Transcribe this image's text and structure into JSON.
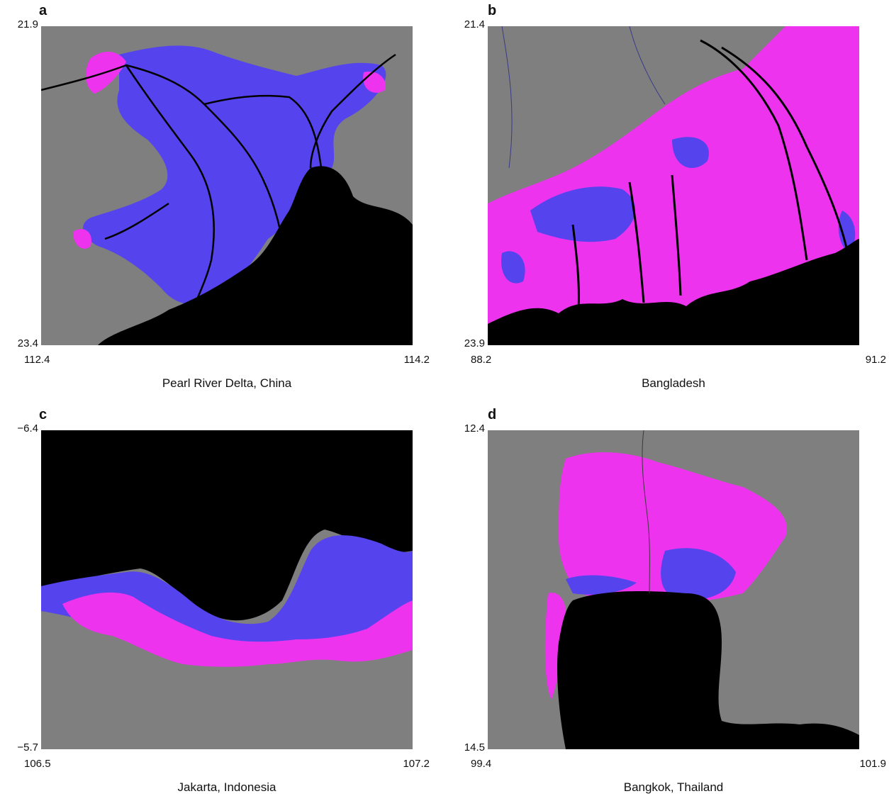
{
  "colors": {
    "land": "#7f7f7f",
    "water": "#000000",
    "magenta_zone": "#ee33ee",
    "blue_zone": "#5544ee"
  },
  "panels": [
    {
      "letter": "a",
      "region": "Pearl River Delta, China",
      "lat_top": "21.9",
      "lat_bottom": "23.4",
      "lon_left": "112.4",
      "lon_right": "114.2"
    },
    {
      "letter": "b",
      "region": "Bangladesh",
      "lat_top": "21.4",
      "lat_bottom": "23.9",
      "lon_left": "88.2",
      "lon_right": "91.2"
    },
    {
      "letter": "c",
      "region": "Jakarta, Indonesia",
      "lat_top": "−6.4",
      "lat_bottom": "−5.7",
      "lon_left": "106.5",
      "lon_right": "107.2"
    },
    {
      "letter": "d",
      "region": "Bangkok, Thailand",
      "lat_top": "12.4",
      "lat_bottom": "14.5",
      "lon_left": "99.4",
      "lon_right": "101.9"
    }
  ]
}
